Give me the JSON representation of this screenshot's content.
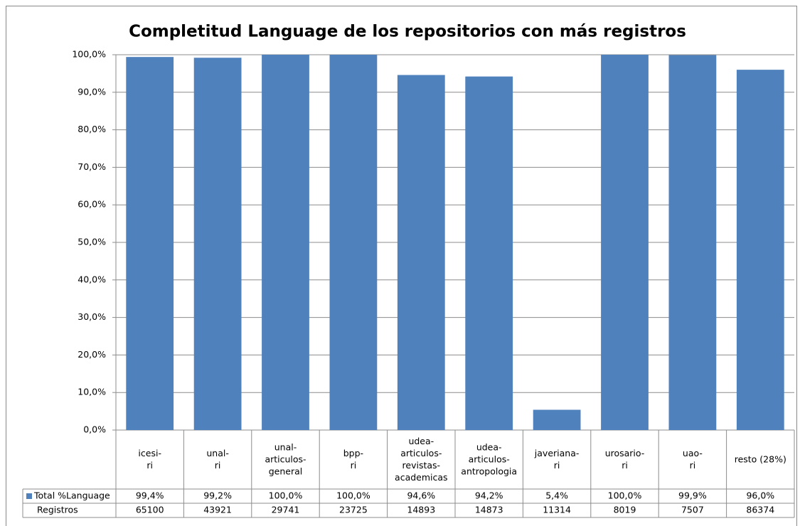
{
  "chart_data": {
    "type": "bar",
    "title": "Completitud Language de los repositorios con más registros",
    "categories": [
      "icesi-ri",
      "unal-ri",
      "unal-articulos-general",
      "bpp-ri",
      "udea-articulos-revistas-academicas",
      "udea-articulos-antropologia",
      "javeriana-ri",
      "urosario-ri",
      "uao-ri",
      "resto (28%)"
    ],
    "series": [
      {
        "name": "Total %Language",
        "color": "#4f81bd",
        "values": [
          99.4,
          99.2,
          100.0,
          100.0,
          94.6,
          94.2,
          5.4,
          100.0,
          99.9,
          96.0
        ],
        "value_labels": [
          "99,4%",
          "99,2%",
          "100,0%",
          "100,0%",
          "94,6%",
          "94,2%",
          "5,4%",
          "100,0%",
          "99,9%",
          "96,0%"
        ]
      }
    ],
    "data_table": {
      "rows": [
        {
          "name": "Registros",
          "values": [
            65100,
            43921,
            29741,
            23725,
            14893,
            14873,
            11314,
            8019,
            7507,
            86374
          ]
        }
      ]
    },
    "ylim": [
      0,
      100
    ],
    "yticks": [
      {
        "value": 0,
        "label": "0,0%"
      },
      {
        "value": 10,
        "label": "10,0%"
      },
      {
        "value": 20,
        "label": "20,0%"
      },
      {
        "value": 30,
        "label": "30,0%"
      },
      {
        "value": 40,
        "label": "40,0%"
      },
      {
        "value": 50,
        "label": "50,0%"
      },
      {
        "value": 60,
        "label": "60,0%"
      },
      {
        "value": 70,
        "label": "70,0%"
      },
      {
        "value": 80,
        "label": "80,0%"
      },
      {
        "value": 90,
        "label": "90,0%"
      },
      {
        "value": 100,
        "label": "100,0%"
      }
    ],
    "grid": true
  }
}
